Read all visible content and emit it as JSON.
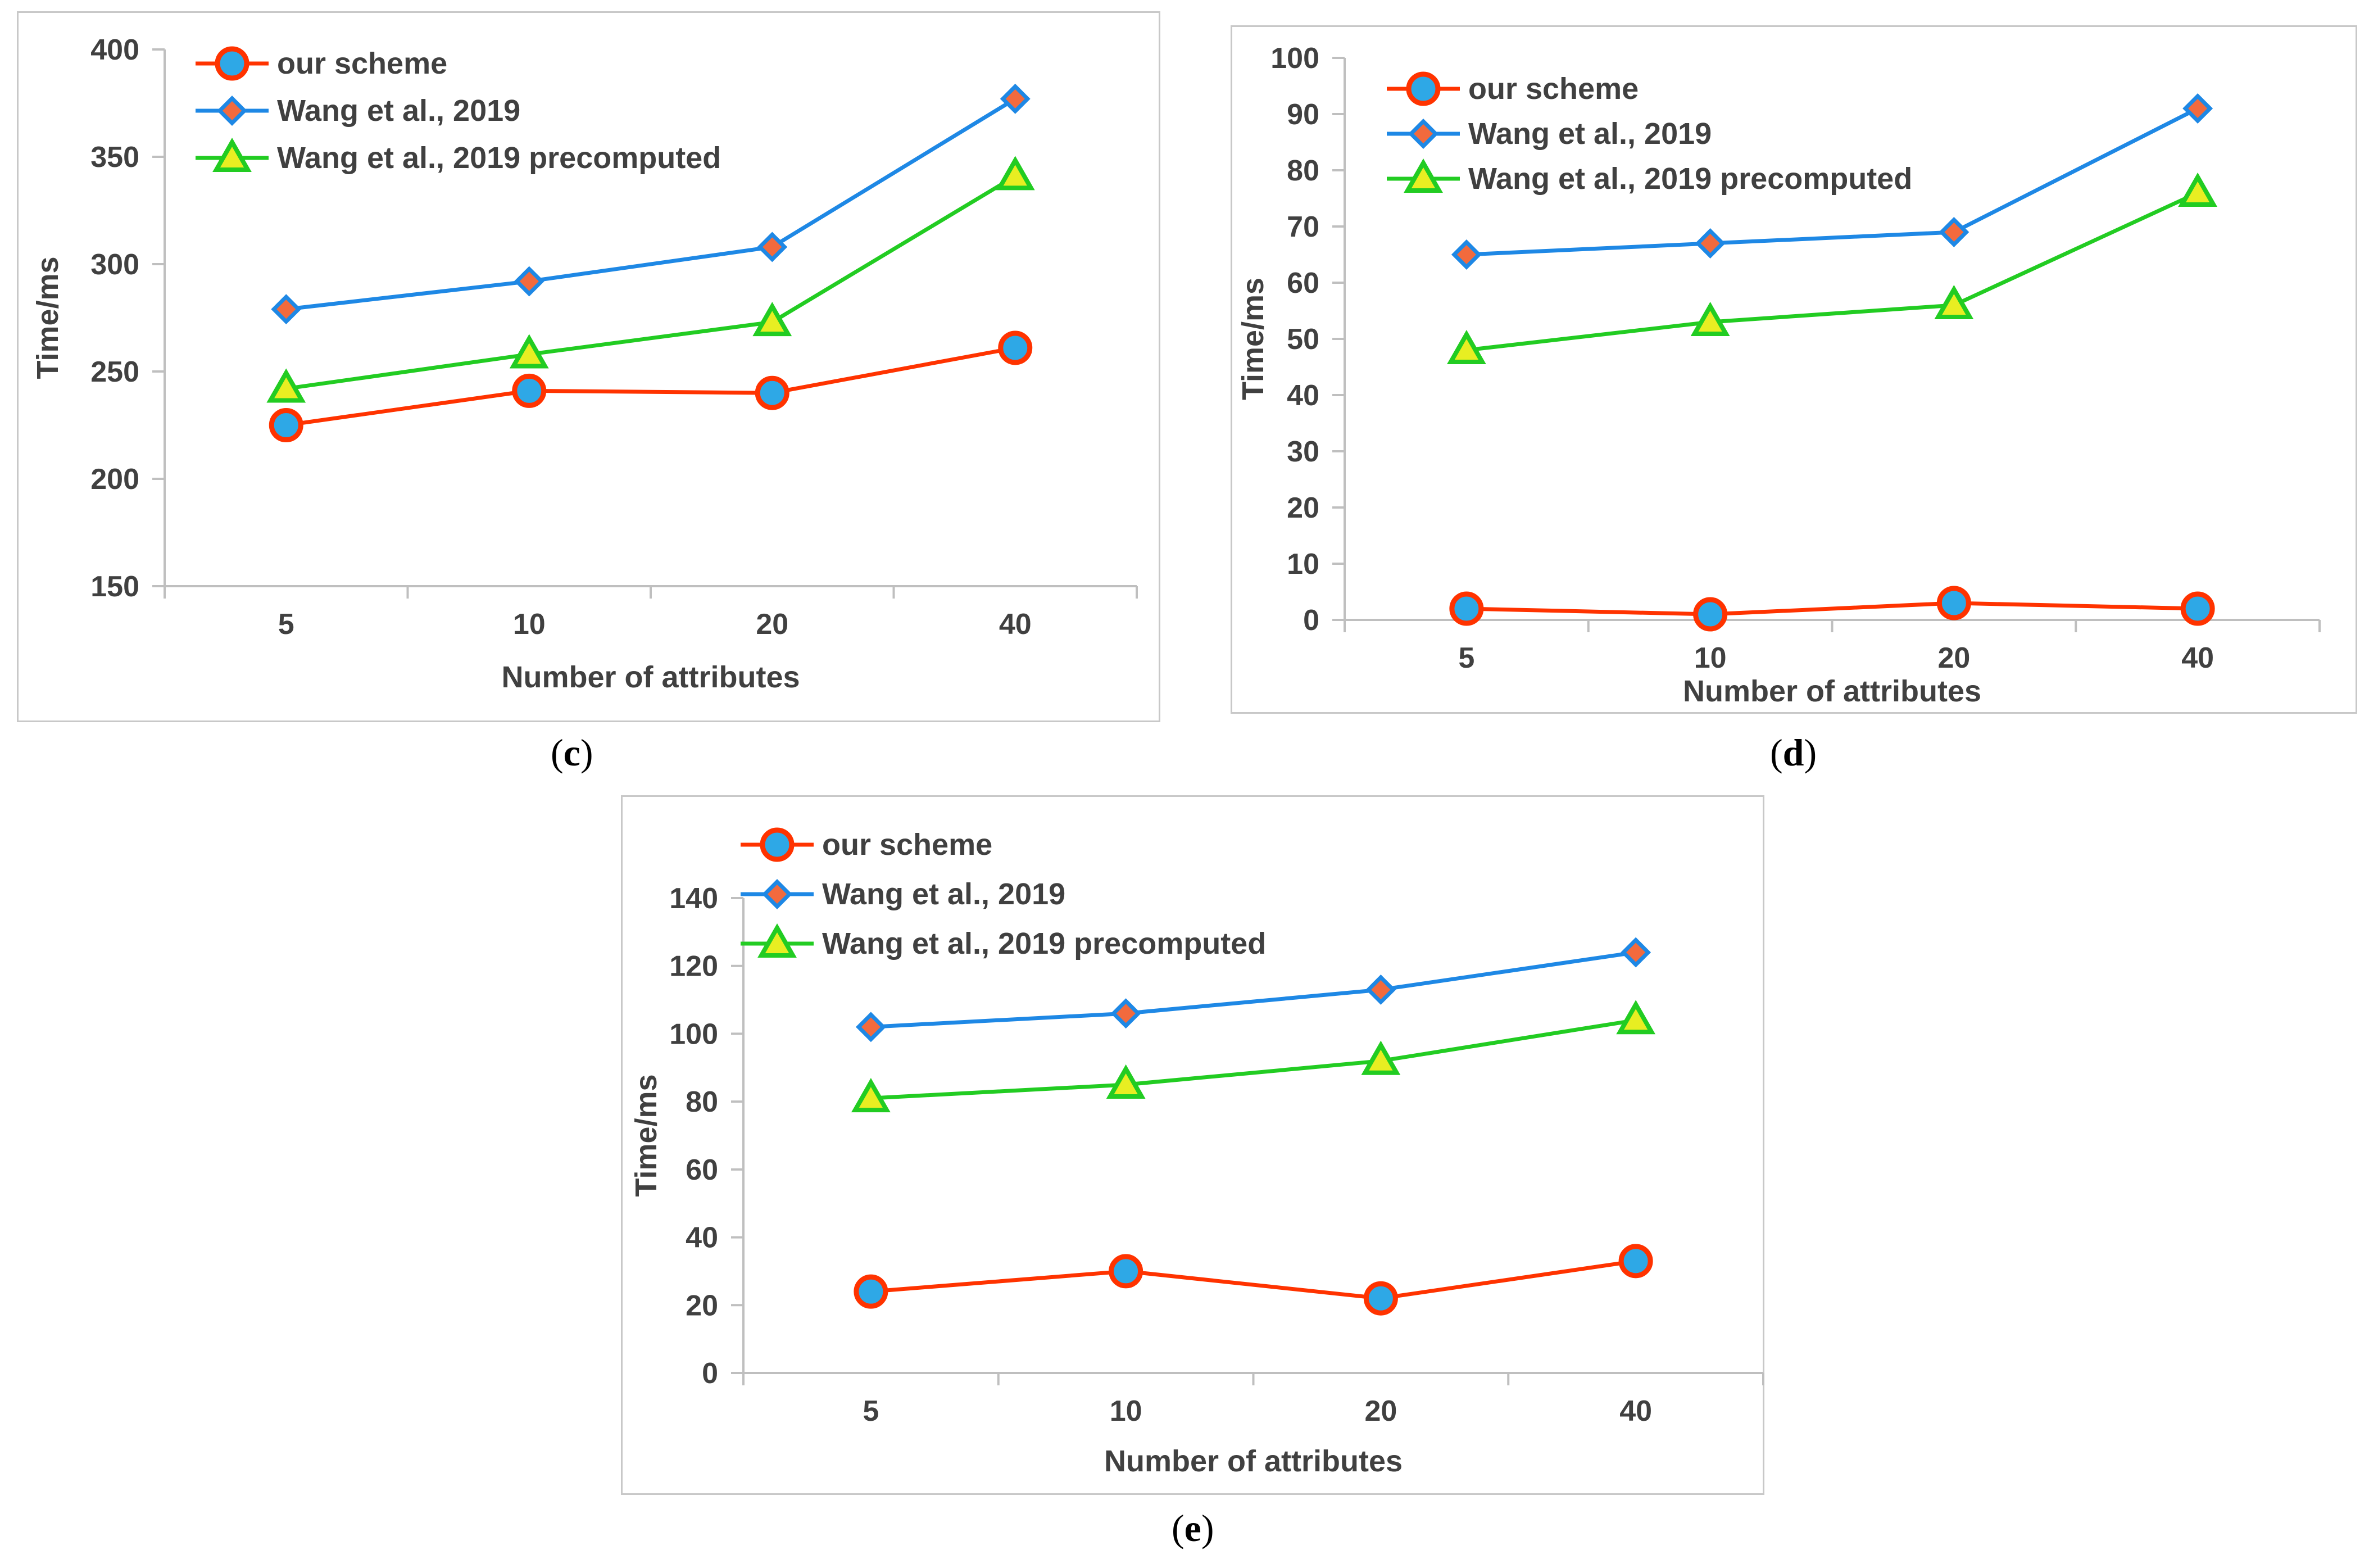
{
  "chart_data": [
    {
      "id": "c",
      "type": "line",
      "caption_letter": "c",
      "title": "",
      "xlabel": "Number of attributes",
      "ylabel": "Time/ms",
      "categories": [
        "5",
        "10",
        "20",
        "40"
      ],
      "ylim": [
        150,
        400
      ],
      "yticks": [
        150,
        200,
        250,
        300,
        350,
        400
      ],
      "legend_position": "top-left",
      "series": [
        {
          "name": "our scheme",
          "marker": "circle",
          "color": "#ff3300",
          "fill": "#2ea8e6",
          "values": [
            225,
            241,
            240,
            261
          ]
        },
        {
          "name": "Wang et al., 2019",
          "marker": "diamond",
          "color": "#1e88e5",
          "fill": "#f26a3d",
          "values": [
            279,
            292,
            308,
            377
          ]
        },
        {
          "name": "Wang et al., 2019 precomputed",
          "marker": "triangle",
          "color": "#22cc22",
          "fill": "#e8ee22",
          "values": [
            242,
            258,
            273,
            341
          ]
        }
      ]
    },
    {
      "id": "d",
      "type": "line",
      "caption_letter": "d",
      "title": "",
      "xlabel": "Number of attributes",
      "ylabel": "Time/ms",
      "categories": [
        "5",
        "10",
        "20",
        "40"
      ],
      "ylim": [
        0,
        100
      ],
      "yticks": [
        0,
        10,
        20,
        30,
        40,
        50,
        60,
        70,
        80,
        90,
        100
      ],
      "legend_position": "top-left",
      "series": [
        {
          "name": "our scheme",
          "marker": "circle",
          "color": "#ff3300",
          "fill": "#2ea8e6",
          "values": [
            2,
            1,
            3,
            2
          ]
        },
        {
          "name": "Wang et al., 2019",
          "marker": "diamond",
          "color": "#1e88e5",
          "fill": "#f26a3d",
          "values": [
            65,
            67,
            69,
            91
          ]
        },
        {
          "name": "Wang et al., 2019 precomputed",
          "marker": "triangle",
          "color": "#22cc22",
          "fill": "#e8ee22",
          "values": [
            48,
            53,
            56,
            76
          ]
        }
      ]
    },
    {
      "id": "e",
      "type": "line",
      "caption_letter": "e",
      "title": "",
      "xlabel": "Number of attributes",
      "ylabel": "Time/ms",
      "categories": [
        "5",
        "10",
        "20",
        "40"
      ],
      "ylim": [
        0,
        140
      ],
      "yticks": [
        0,
        20,
        40,
        60,
        80,
        100,
        120,
        140
      ],
      "legend_position": "top-left",
      "series": [
        {
          "name": "our scheme",
          "marker": "circle",
          "color": "#ff3300",
          "fill": "#2ea8e6",
          "values": [
            24,
            30,
            22,
            33
          ]
        },
        {
          "name": "Wang et al., 2019",
          "marker": "diamond",
          "color": "#1e88e5",
          "fill": "#f26a3d",
          "values": [
            102,
            106,
            113,
            124
          ]
        },
        {
          "name": "Wang et al., 2019 precomputed",
          "marker": "triangle",
          "color": "#22cc22",
          "fill": "#e8ee22",
          "values": [
            81,
            85,
            92,
            104
          ]
        }
      ]
    }
  ]
}
